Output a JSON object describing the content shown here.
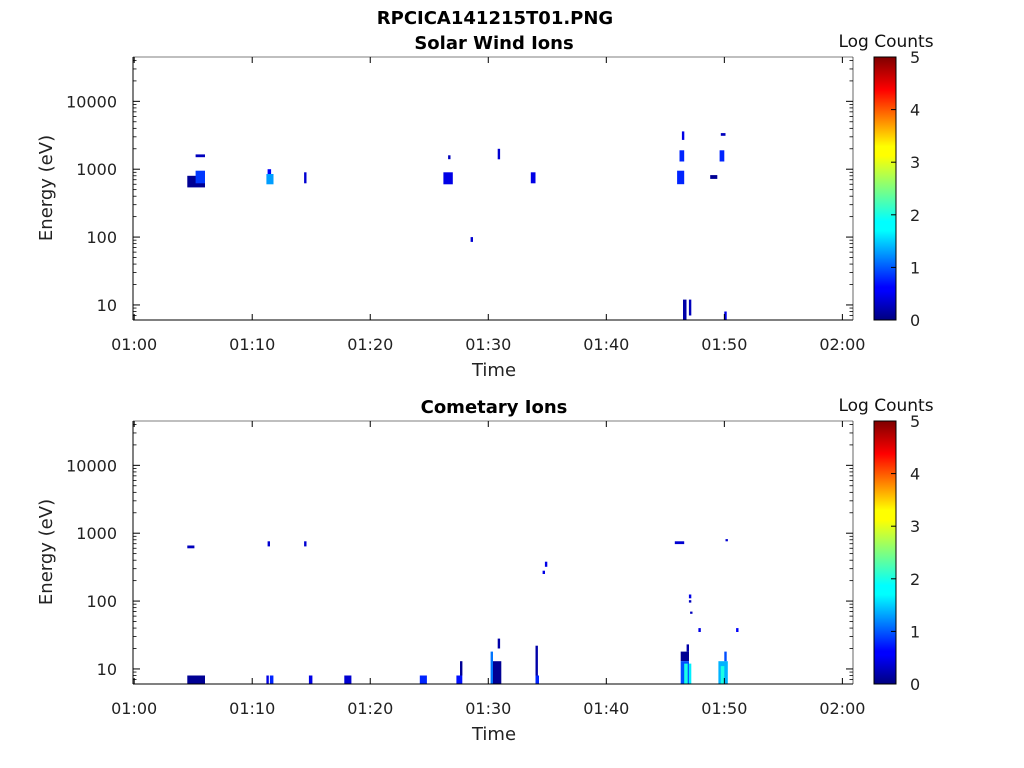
{
  "figure": {
    "title": "RPCICA141215T01.PNG"
  },
  "chart_data": [
    {
      "type": "heatmap",
      "title": "Solar Wind Ions",
      "xlabel": "Time",
      "ylabel": "Energy (eV)",
      "x_ticks": [
        "01:00",
        "01:10",
        "01:20",
        "01:30",
        "01:40",
        "01:50",
        "02:00"
      ],
      "y_ticks": [
        "10",
        "100",
        "1000",
        "10000"
      ],
      "y_scale": "log",
      "ylim": [
        6,
        45000
      ],
      "colorbar": {
        "label": "Log Counts",
        "min": 0,
        "max": 5,
        "ticks": [
          "0",
          "1",
          "2",
          "3",
          "4",
          "5"
        ],
        "colormap": "jet"
      },
      "cells": [
        {
          "t0": 4.5,
          "t1": 6.0,
          "e0": 540,
          "e1": 800,
          "v": 0.1
        },
        {
          "t0": 5.2,
          "t1": 6.0,
          "e0": 620,
          "e1": 950,
          "v": 0.9
        },
        {
          "t0": 5.2,
          "t1": 6.0,
          "e0": 1500,
          "e1": 1650,
          "v": 0.3
        },
        {
          "t0": 11.2,
          "t1": 11.8,
          "e0": 600,
          "e1": 850,
          "v": 1.4
        },
        {
          "t0": 11.3,
          "t1": 11.6,
          "e0": 850,
          "e1": 1000,
          "v": 0.6
        },
        {
          "t0": 14.4,
          "t1": 14.6,
          "e0": 620,
          "e1": 900,
          "v": 0.4
        },
        {
          "t0": 26.2,
          "t1": 27.0,
          "e0": 600,
          "e1": 900,
          "v": 0.5
        },
        {
          "t0": 26.6,
          "t1": 26.8,
          "e0": 1400,
          "e1": 1600,
          "v": 0.3
        },
        {
          "t0": 28.5,
          "t1": 28.7,
          "e0": 85,
          "e1": 100,
          "v": 0.4
        },
        {
          "t0": 30.8,
          "t1": 31.0,
          "e0": 1400,
          "e1": 2000,
          "v": 0.4
        },
        {
          "t0": 33.6,
          "t1": 34.0,
          "e0": 620,
          "e1": 900,
          "v": 0.5
        },
        {
          "t0": 46.0,
          "t1": 46.6,
          "e0": 600,
          "e1": 950,
          "v": 0.8
        },
        {
          "t0": 46.2,
          "t1": 46.6,
          "e0": 1300,
          "e1": 1900,
          "v": 0.8
        },
        {
          "t0": 46.4,
          "t1": 46.6,
          "e0": 2700,
          "e1": 3600,
          "v": 0.5
        },
        {
          "t0": 46.5,
          "t1": 46.8,
          "e0": 6,
          "e1": 12,
          "v": 0.2
        },
        {
          "t0": 47.0,
          "t1": 47.2,
          "e0": 7,
          "e1": 12,
          "v": 0.3
        },
        {
          "t0": 48.8,
          "t1": 49.4,
          "e0": 720,
          "e1": 820,
          "v": 0.1
        },
        {
          "t0": 49.6,
          "t1": 50.0,
          "e0": 1300,
          "e1": 1900,
          "v": 0.8
        },
        {
          "t0": 49.7,
          "t1": 50.1,
          "e0": 3100,
          "e1": 3400,
          "v": 0.3
        },
        {
          "t0": 50.0,
          "t1": 50.2,
          "e0": 6,
          "e1": 8,
          "v": 0.5
        }
      ]
    },
    {
      "type": "heatmap",
      "title": "Cometary Ions",
      "xlabel": "Time",
      "ylabel": "Energy (eV)",
      "x_ticks": [
        "01:00",
        "01:10",
        "01:20",
        "01:30",
        "01:40",
        "01:50",
        "02:00"
      ],
      "y_ticks": [
        "10",
        "100",
        "1000",
        "10000"
      ],
      "y_scale": "log",
      "ylim": [
        6,
        45000
      ],
      "colorbar": {
        "label": "Log Counts",
        "min": 0,
        "max": 5,
        "ticks": [
          "0",
          "1",
          "2",
          "3",
          "4",
          "5"
        ],
        "colormap": "jet"
      },
      "cells": [
        {
          "t0": 4.5,
          "t1": 5.1,
          "e0": 600,
          "e1": 660,
          "v": 0.3
        },
        {
          "t0": 4.5,
          "t1": 6.0,
          "e0": 6,
          "e1": 8,
          "v": 0.1
        },
        {
          "t0": 11.3,
          "t1": 11.5,
          "e0": 640,
          "e1": 760,
          "v": 0.4
        },
        {
          "t0": 14.4,
          "t1": 14.6,
          "e0": 640,
          "e1": 760,
          "v": 0.4
        },
        {
          "t0": 11.2,
          "t1": 11.4,
          "e0": 6,
          "e1": 8,
          "v": 0.5
        },
        {
          "t0": 11.5,
          "t1": 11.8,
          "e0": 6,
          "e1": 8,
          "v": 0.8
        },
        {
          "t0": 14.8,
          "t1": 15.1,
          "e0": 6,
          "e1": 8,
          "v": 0.5
        },
        {
          "t0": 17.8,
          "t1": 18.4,
          "e0": 6,
          "e1": 8,
          "v": 0.4
        },
        {
          "t0": 24.2,
          "t1": 24.8,
          "e0": 6,
          "e1": 8,
          "v": 0.8
        },
        {
          "t0": 27.3,
          "t1": 27.8,
          "e0": 6,
          "e1": 8,
          "v": 0.7
        },
        {
          "t0": 27.6,
          "t1": 27.8,
          "e0": 8,
          "e1": 13,
          "v": 0.1
        },
        {
          "t0": 30.2,
          "t1": 30.4,
          "e0": 6,
          "e1": 18,
          "v": 1.2
        },
        {
          "t0": 30.4,
          "t1": 31.1,
          "e0": 6,
          "e1": 13,
          "v": 0.1
        },
        {
          "t0": 30.8,
          "t1": 31.0,
          "e0": 20,
          "e1": 28,
          "v": 0.2
        },
        {
          "t0": 34.0,
          "t1": 34.2,
          "e0": 6,
          "e1": 22,
          "v": 0.2
        },
        {
          "t0": 34.0,
          "t1": 34.3,
          "e0": 6,
          "e1": 8,
          "v": 0.8
        },
        {
          "t0": 34.6,
          "t1": 34.8,
          "e0": 250,
          "e1": 280,
          "v": 0.5
        },
        {
          "t0": 34.8,
          "t1": 35.0,
          "e0": 320,
          "e1": 380,
          "v": 0.5
        },
        {
          "t0": 45.8,
          "t1": 46.6,
          "e0": 690,
          "e1": 760,
          "v": 0.4
        },
        {
          "t0": 46.3,
          "t1": 47.0,
          "e0": 13,
          "e1": 18,
          "v": 0.1
        },
        {
          "t0": 46.3,
          "t1": 47.0,
          "e0": 6,
          "e1": 13,
          "v": 1.0
        },
        {
          "t0": 46.6,
          "t1": 46.9,
          "e0": 6,
          "e1": 12,
          "v": 2.0
        },
        {
          "t0": 46.8,
          "t1": 47.0,
          "e0": 18,
          "e1": 23,
          "v": 0.2
        },
        {
          "t0": 47.0,
          "t1": 47.2,
          "e0": 6,
          "e1": 12,
          "v": 1.8
        },
        {
          "t0": 47.0,
          "t1": 47.2,
          "e0": 110,
          "e1": 125,
          "v": 0.5
        },
        {
          "t0": 47.0,
          "t1": 47.2,
          "e0": 95,
          "e1": 103,
          "v": 0.3
        },
        {
          "t0": 47.1,
          "t1": 47.3,
          "e0": 65,
          "e1": 70,
          "v": 0.3
        },
        {
          "t0": 47.8,
          "t1": 48.0,
          "e0": 35,
          "e1": 40,
          "v": 0.5
        },
        {
          "t0": 49.5,
          "t1": 50.3,
          "e0": 6,
          "e1": 13,
          "v": 1.5
        },
        {
          "t0": 49.7,
          "t1": 50.0,
          "e0": 6,
          "e1": 11,
          "v": 2.0
        },
        {
          "t0": 50.0,
          "t1": 50.2,
          "e0": 13,
          "e1": 18,
          "v": 1.0
        },
        {
          "t0": 50.1,
          "t1": 50.3,
          "e0": 760,
          "e1": 820,
          "v": 0.4
        },
        {
          "t0": 51.0,
          "t1": 51.2,
          "e0": 35,
          "e1": 40,
          "v": 0.6
        }
      ]
    }
  ]
}
